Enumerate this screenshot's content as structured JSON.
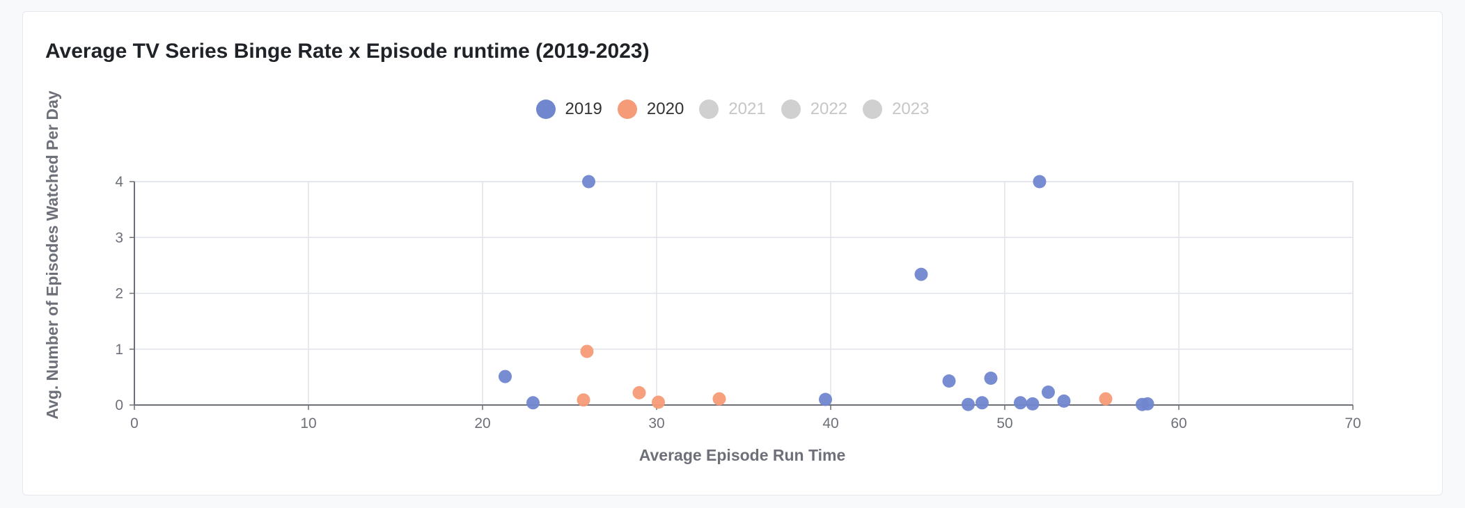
{
  "chart_data": {
    "type": "scatter",
    "title": "Average TV Series Binge Rate x Episode runtime (2019-2023)",
    "xlabel": "Average Episode Run Time",
    "ylabel": "Avg. Number of Episodes Watched Per Day",
    "xlim": [
      0,
      70
    ],
    "ylim": [
      0,
      4
    ],
    "xticks": [
      0,
      10,
      20,
      30,
      40,
      50,
      60,
      70
    ],
    "yticks": [
      0,
      1,
      2,
      3,
      4
    ],
    "grid": true,
    "legend_position": "top-center",
    "series": [
      {
        "name": "2019",
        "color": "#7086cf",
        "visible": true,
        "points": [
          [
            21.3,
            0.51
          ],
          [
            22.9,
            0.04
          ],
          [
            26.1,
            4.0
          ],
          [
            39.7,
            0.1
          ],
          [
            45.2,
            2.34
          ],
          [
            46.8,
            0.43
          ],
          [
            47.9,
            0.01
          ],
          [
            48.7,
            0.04
          ],
          [
            49.2,
            0.48
          ],
          [
            50.9,
            0.04
          ],
          [
            51.6,
            0.02
          ],
          [
            52.0,
            4.0
          ],
          [
            52.5,
            0.23
          ],
          [
            53.4,
            0.07
          ],
          [
            57.9,
            0.01
          ],
          [
            58.2,
            0.02
          ]
        ]
      },
      {
        "name": "2020",
        "color": "#f59b77",
        "visible": true,
        "points": [
          [
            25.8,
            0.09
          ],
          [
            26.0,
            0.96
          ],
          [
            29.0,
            0.22
          ],
          [
            30.1,
            0.05
          ],
          [
            33.6,
            0.11
          ],
          [
            55.8,
            0.11
          ]
        ]
      },
      {
        "name": "2021",
        "color": "#d0d0d0",
        "visible": false,
        "points": []
      },
      {
        "name": "2022",
        "color": "#d0d0d0",
        "visible": false,
        "points": []
      },
      {
        "name": "2023",
        "color": "#d0d0d0",
        "visible": false,
        "points": []
      }
    ]
  }
}
